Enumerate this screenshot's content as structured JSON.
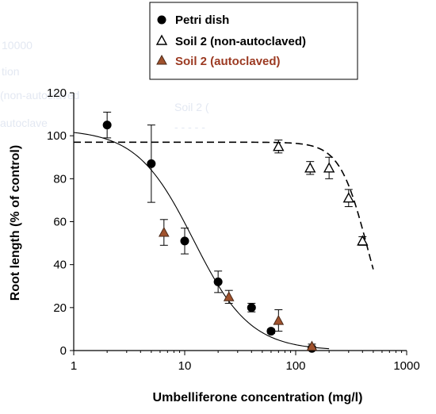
{
  "chart_data": {
    "type": "scatter",
    "xlabel": "Umbelliferone concentration (mg/l)",
    "ylabel": "Root length (% of control)",
    "xscale": "log",
    "xlim": [
      1,
      1000
    ],
    "ylim": [
      0,
      120
    ],
    "xticks": [
      "1",
      "10",
      "100",
      "1000"
    ],
    "yticks": [
      "0",
      "20",
      "40",
      "60",
      "80",
      "100",
      "120"
    ],
    "legend_position": "top",
    "series": [
      {
        "name": "Petri dish",
        "marker": "filled-circle",
        "color": "#000000",
        "x": [
          2,
          5,
          10,
          20,
          40,
          60,
          140
        ],
        "y": [
          105,
          87,
          51,
          32,
          20,
          9,
          1
        ],
        "error": [
          6,
          18,
          6,
          5,
          2,
          1,
          1
        ]
      },
      {
        "name": "Soil 2 (non-autoclaved)",
        "marker": "open-triangle",
        "color": "#000000",
        "x": [
          70,
          135,
          200,
          300,
          400
        ],
        "y": [
          95,
          85,
          85,
          71,
          51
        ],
        "error": [
          3,
          3,
          5,
          4,
          2
        ]
      },
      {
        "name": "Soil 2 (autoclaved)",
        "marker": "filled-triangle",
        "color": "#a0522d",
        "legend_text_color": "#9c3a22",
        "x": [
          6.5,
          25,
          70,
          140
        ],
        "y": [
          55,
          25,
          14,
          2
        ],
        "error": [
          6,
          3,
          5,
          1
        ]
      }
    ],
    "fits": [
      {
        "series": "Petri dish",
        "style": "solid",
        "top": 103,
        "ec50": 12,
        "slope": 1.7,
        "x_range": [
          1,
          200
        ]
      },
      {
        "series": "Soil 2 (non-autoclaved)",
        "style": "dashed",
        "top": 97,
        "ec50": 440,
        "slope": 3.5,
        "x_range": [
          1,
          500
        ]
      }
    ]
  }
}
